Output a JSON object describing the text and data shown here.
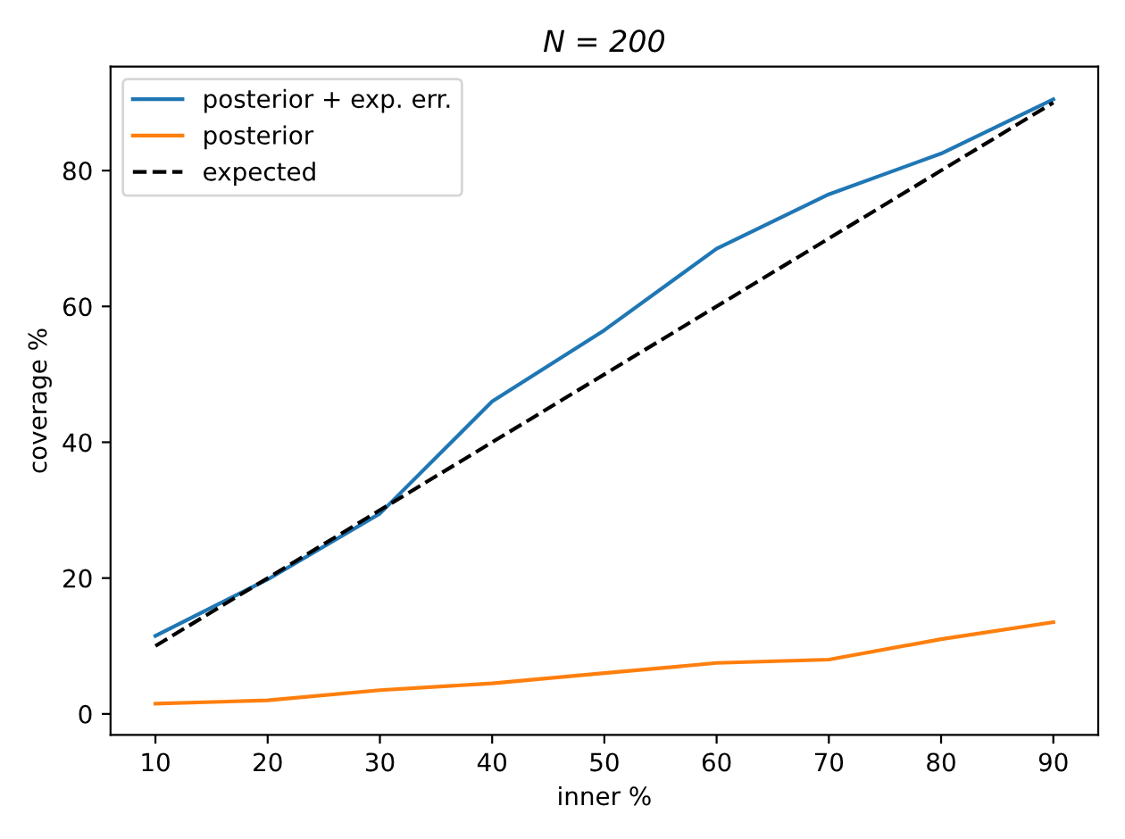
{
  "chart_data": {
    "type": "line",
    "title": "N = 200",
    "xlabel": "inner %",
    "ylabel": "coverage %",
    "x": [
      10,
      20,
      30,
      40,
      50,
      60,
      70,
      80,
      90
    ],
    "series": [
      {
        "name": "posterior + exp. err.",
        "color": "#1f77b4",
        "values": [
          11.5,
          19.8,
          29.5,
          46,
          56.5,
          68.5,
          76.5,
          82.5,
          90.5
        ]
      },
      {
        "name": "posterior",
        "color": "#ff7f0e",
        "values": [
          1.5,
          2,
          3.5,
          4.5,
          6,
          7.5,
          8,
          11,
          13.5
        ]
      },
      {
        "name": "expected",
        "color": "#000000",
        "line_style": "dashed",
        "values": [
          10,
          20,
          30,
          40,
          50,
          60,
          70,
          80,
          90
        ]
      }
    ],
    "xlim": [
      6,
      94
    ],
    "ylim": [
      -3.1,
      95.3
    ],
    "xticks": [
      10,
      20,
      30,
      40,
      50,
      60,
      70,
      80,
      90
    ],
    "yticks": [
      0,
      20,
      40,
      60,
      80
    ],
    "grid": false,
    "legend": "top left"
  }
}
